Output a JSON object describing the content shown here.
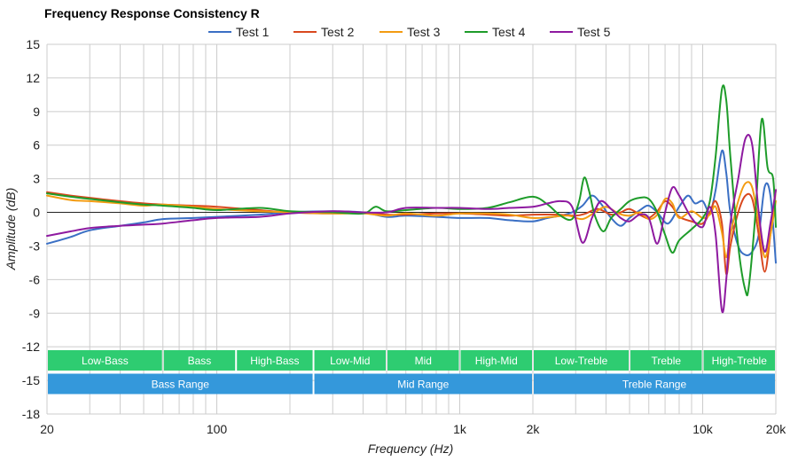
{
  "chart_data": {
    "type": "line",
    "title": "Frequency Response Consistency R",
    "xlabel": "Frequency (Hz)",
    "ylabel": "Amplitude (dB)",
    "x_scale": "log",
    "xlim": [
      20,
      20000
    ],
    "ylim": [
      -18,
      15
    ],
    "grid": true,
    "legend_position": "top-center",
    "x_ticks": [
      {
        "value": 20,
        "label": "20"
      },
      {
        "value": 100,
        "label": "100"
      },
      {
        "value": 1000,
        "label": "1k"
      },
      {
        "value": 2000,
        "label": "2k"
      },
      {
        "value": 10000,
        "label": "10k"
      },
      {
        "value": 20000,
        "label": "20k"
      }
    ],
    "y_ticks": [
      15,
      12,
      9,
      6,
      3,
      0,
      -3,
      -6,
      -9,
      -12,
      -15,
      -18
    ],
    "bands": [
      {
        "row": 1,
        "label": "Low-Bass",
        "x0": 20,
        "x1": 60,
        "color": "#2ecc71"
      },
      {
        "row": 1,
        "label": "Bass",
        "x0": 60,
        "x1": 120,
        "color": "#2ecc71"
      },
      {
        "row": 1,
        "label": "High-Bass",
        "x0": 120,
        "x1": 250,
        "color": "#2ecc71"
      },
      {
        "row": 1,
        "label": "Low-Mid",
        "x0": 250,
        "x1": 500,
        "color": "#2ecc71"
      },
      {
        "row": 1,
        "label": "Mid",
        "x0": 500,
        "x1": 1000,
        "color": "#2ecc71"
      },
      {
        "row": 1,
        "label": "High-Mid",
        "x0": 1000,
        "x1": 2000,
        "color": "#2ecc71"
      },
      {
        "row": 1,
        "label": "Low-Treble",
        "x0": 2000,
        "x1": 5000,
        "color": "#2ecc71"
      },
      {
        "row": 1,
        "label": "Treble",
        "x0": 5000,
        "x1": 10000,
        "color": "#2ecc71"
      },
      {
        "row": 1,
        "label": "High-Treble",
        "x0": 10000,
        "x1": 20000,
        "color": "#2ecc71"
      },
      {
        "row": 2,
        "label": "Bass Range",
        "x0": 20,
        "x1": 250,
        "color": "#3498db"
      },
      {
        "row": 2,
        "label": "Mid Range",
        "x0": 250,
        "x1": 2000,
        "color": "#3498db"
      },
      {
        "row": 2,
        "label": "Treble Range",
        "x0": 2000,
        "x1": 20000,
        "color": "#3498db"
      }
    ],
    "series": [
      {
        "name": "Test 1",
        "color": "#3a6fc4",
        "points": [
          [
            20,
            -2.8
          ],
          [
            25,
            -2.2
          ],
          [
            30,
            -1.6
          ],
          [
            40,
            -1.2
          ],
          [
            50,
            -0.9
          ],
          [
            60,
            -0.6
          ],
          [
            80,
            -0.5
          ],
          [
            100,
            -0.4
          ],
          [
            150,
            -0.2
          ],
          [
            200,
            0
          ],
          [
            300,
            0.1
          ],
          [
            400,
            0
          ],
          [
            500,
            -0.4
          ],
          [
            600,
            -0.3
          ],
          [
            800,
            -0.4
          ],
          [
            1000,
            -0.5
          ],
          [
            1300,
            -0.5
          ],
          [
            1600,
            -0.7
          ],
          [
            2000,
            -0.8
          ],
          [
            2300,
            -0.5
          ],
          [
            2600,
            -0.3
          ],
          [
            2900,
            0
          ],
          [
            3200,
            0.6
          ],
          [
            3500,
            1.5
          ],
          [
            3800,
            0.8
          ],
          [
            4200,
            -0.5
          ],
          [
            4600,
            -1.2
          ],
          [
            5000,
            -0.5
          ],
          [
            5600,
            0.3
          ],
          [
            6000,
            0.6
          ],
          [
            6500,
            0
          ],
          [
            7200,
            -1
          ],
          [
            8000,
            0.5
          ],
          [
            8700,
            1.5
          ],
          [
            9300,
            0.8
          ],
          [
            10000,
            1
          ],
          [
            10700,
            0
          ],
          [
            11300,
            2
          ],
          [
            12000,
            5.5
          ],
          [
            12500,
            3.5
          ],
          [
            13000,
            0
          ],
          [
            14000,
            -3
          ],
          [
            15000,
            -3.8
          ],
          [
            16000,
            -3.5
          ],
          [
            17000,
            -2
          ],
          [
            18000,
            2.3
          ],
          [
            19000,
            1.5
          ],
          [
            20000,
            -4.5
          ]
        ]
      },
      {
        "name": "Test 2",
        "color": "#d9481e",
        "points": [
          [
            20,
            1.8
          ],
          [
            25,
            1.5
          ],
          [
            30,
            1.3
          ],
          [
            40,
            1
          ],
          [
            50,
            0.8
          ],
          [
            60,
            0.7
          ],
          [
            80,
            0.6
          ],
          [
            100,
            0.5
          ],
          [
            150,
            0.2
          ],
          [
            200,
            0
          ],
          [
            300,
            -0.1
          ],
          [
            400,
            0
          ],
          [
            500,
            -0.2
          ],
          [
            600,
            -0.2
          ],
          [
            800,
            -0.1
          ],
          [
            1000,
            -0.1
          ],
          [
            1300,
            -0.2
          ],
          [
            1600,
            -0.3
          ],
          [
            2000,
            -0.2
          ],
          [
            2500,
            -0.2
          ],
          [
            3000,
            -0.3
          ],
          [
            3300,
            -0.1
          ],
          [
            3700,
            0.3
          ],
          [
            4200,
            -0.2
          ],
          [
            4600,
            0
          ],
          [
            5000,
            0.3
          ],
          [
            5600,
            -0.3
          ],
          [
            6000,
            -0.5
          ],
          [
            6500,
            0.1
          ],
          [
            7000,
            1
          ],
          [
            7500,
            0.5
          ],
          [
            8000,
            -0.4
          ],
          [
            9000,
            -0.8
          ],
          [
            10000,
            -1
          ],
          [
            10700,
            0
          ],
          [
            11300,
            1
          ],
          [
            12000,
            -1
          ],
          [
            12500,
            -5.5
          ],
          [
            13000,
            -3
          ],
          [
            14000,
            0
          ],
          [
            15000,
            1.5
          ],
          [
            16000,
            1.2
          ],
          [
            17000,
            -2
          ],
          [
            18000,
            -5.3
          ],
          [
            19000,
            -2
          ],
          [
            20000,
            2
          ]
        ]
      },
      {
        "name": "Test 3",
        "color": "#f39c12",
        "points": [
          [
            20,
            1.5
          ],
          [
            25,
            1.1
          ],
          [
            30,
            1
          ],
          [
            40,
            0.8
          ],
          [
            50,
            0.6
          ],
          [
            60,
            0.7
          ],
          [
            80,
            0.5
          ],
          [
            100,
            0.3
          ],
          [
            150,
            0.1
          ],
          [
            200,
            0
          ],
          [
            300,
            -0.1
          ],
          [
            400,
            -0.1
          ],
          [
            500,
            -0.3
          ],
          [
            600,
            -0.1
          ],
          [
            800,
            -0.3
          ],
          [
            1000,
            -0.1
          ],
          [
            1300,
            -0.1
          ],
          [
            1600,
            -0.2
          ],
          [
            2000,
            -0.5
          ],
          [
            2400,
            -0.4
          ],
          [
            2800,
            -0.3
          ],
          [
            3200,
            -0.6
          ],
          [
            3600,
            0
          ],
          [
            4000,
            0.5
          ],
          [
            4500,
            -0.1
          ],
          [
            5000,
            -0.3
          ],
          [
            5500,
            0
          ],
          [
            6000,
            -0.6
          ],
          [
            6500,
            -0.2
          ],
          [
            7000,
            1.2
          ],
          [
            7500,
            0.8
          ],
          [
            8000,
            -0.5
          ],
          [
            9000,
            0.1
          ],
          [
            10000,
            -0.5
          ],
          [
            10700,
            -0.2
          ],
          [
            11300,
            0.5
          ],
          [
            12000,
            -1.8
          ],
          [
            12500,
            -4
          ],
          [
            13000,
            -2
          ],
          [
            14000,
            1
          ],
          [
            15000,
            2.6
          ],
          [
            16000,
            2.2
          ],
          [
            17000,
            -1
          ],
          [
            18000,
            -4
          ],
          [
            19000,
            -2
          ],
          [
            20000,
            1
          ]
        ]
      },
      {
        "name": "Test 4",
        "color": "#1e9c2a",
        "points": [
          [
            20,
            1.7
          ],
          [
            25,
            1.4
          ],
          [
            30,
            1.2
          ],
          [
            40,
            0.9
          ],
          [
            50,
            0.7
          ],
          [
            60,
            0.6
          ],
          [
            80,
            0.4
          ],
          [
            100,
            0.2
          ],
          [
            150,
            0.4
          ],
          [
            200,
            0.1
          ],
          [
            300,
            0
          ],
          [
            400,
            -0.1
          ],
          [
            450,
            0.5
          ],
          [
            500,
            0.1
          ],
          [
            600,
            0.2
          ],
          [
            800,
            0.4
          ],
          [
            1000,
            0.3
          ],
          [
            1300,
            0.4
          ],
          [
            1600,
            0.9
          ],
          [
            2000,
            1.4
          ],
          [
            2300,
            0.7
          ],
          [
            2600,
            -0.3
          ],
          [
            2900,
            -0.6
          ],
          [
            3100,
            1
          ],
          [
            3250,
            3.1
          ],
          [
            3400,
            2
          ],
          [
            3600,
            -0.3
          ],
          [
            3900,
            -1.7
          ],
          [
            4200,
            -0.5
          ],
          [
            4600,
            0.3
          ],
          [
            5000,
            1
          ],
          [
            5500,
            1.3
          ],
          [
            6000,
            1.2
          ],
          [
            6500,
            0
          ],
          [
            7000,
            -2
          ],
          [
            7500,
            -3.6
          ],
          [
            8000,
            -2.5
          ],
          [
            9000,
            -1.5
          ],
          [
            10000,
            -0.5
          ],
          [
            10700,
            1
          ],
          [
            11300,
            5
          ],
          [
            12000,
            11
          ],
          [
            12500,
            10
          ],
          [
            13000,
            5
          ],
          [
            14000,
            -3
          ],
          [
            15000,
            -7
          ],
          [
            15500,
            -6.5
          ],
          [
            16500,
            0
          ],
          [
            17500,
            8.3
          ],
          [
            18500,
            4
          ],
          [
            19500,
            3
          ],
          [
            20000,
            -1.3
          ]
        ]
      },
      {
        "name": "Test 5",
        "color": "#8e1aa0",
        "points": [
          [
            20,
            -2.1
          ],
          [
            25,
            -1.7
          ],
          [
            30,
            -1.4
          ],
          [
            40,
            -1.2
          ],
          [
            50,
            -1.1
          ],
          [
            60,
            -1
          ],
          [
            80,
            -0.7
          ],
          [
            100,
            -0.5
          ],
          [
            150,
            -0.4
          ],
          [
            200,
            -0.1
          ],
          [
            300,
            0.1
          ],
          [
            400,
            0
          ],
          [
            500,
            0
          ],
          [
            600,
            0.4
          ],
          [
            800,
            0.4
          ],
          [
            1000,
            0.4
          ],
          [
            1300,
            0.3
          ],
          [
            1600,
            0.4
          ],
          [
            2000,
            0.5
          ],
          [
            2300,
            0.8
          ],
          [
            2600,
            1
          ],
          [
            2900,
            0.5
          ],
          [
            3200,
            -2.7
          ],
          [
            3500,
            -0.5
          ],
          [
            3800,
            1
          ],
          [
            4200,
            0.3
          ],
          [
            4600,
            -0.5
          ],
          [
            5000,
            -0.8
          ],
          [
            5500,
            -0.2
          ],
          [
            6000,
            -0.5
          ],
          [
            6500,
            -2.8
          ],
          [
            7000,
            0
          ],
          [
            7500,
            2.2
          ],
          [
            8000,
            1.5
          ],
          [
            9000,
            -0.5
          ],
          [
            10000,
            -1.3
          ],
          [
            10700,
            0.5
          ],
          [
            11300,
            -2
          ],
          [
            12000,
            -8.8
          ],
          [
            12500,
            -6
          ],
          [
            13000,
            -1
          ],
          [
            14000,
            3
          ],
          [
            15000,
            6.6
          ],
          [
            16000,
            6
          ],
          [
            17000,
            0
          ],
          [
            18000,
            -3.5
          ],
          [
            19000,
            -1
          ],
          [
            20000,
            2
          ]
        ]
      }
    ]
  }
}
